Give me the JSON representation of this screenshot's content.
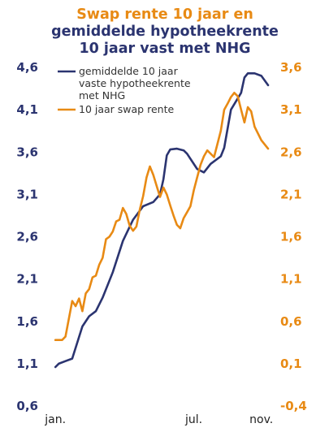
{
  "chart_data": {
    "type": "line",
    "title_lines": [
      {
        "text": "Swap rente 10 jaar en",
        "color": "#e88a14"
      },
      {
        "text": "gemiddelde hypotheekrente",
        "color": "#2b3470"
      },
      {
        "text": "10 jaar vast met NHG",
        "color": "#2b3470"
      }
    ],
    "x_ticks": [
      {
        "label": "jan.",
        "x": 1
      },
      {
        "label": "jul.",
        "x": 42
      },
      {
        "label": "nov.",
        "x": 62
      }
    ],
    "x_range": [
      0,
      64
    ],
    "y_left": {
      "ticks": [
        "4,6",
        "4,1",
        "3,6",
        "3,1",
        "2,6",
        "2,1",
        "1,6",
        "1,1",
        "0,6"
      ],
      "range": [
        0.6,
        4.6
      ],
      "color": "#2b3470"
    },
    "y_right": {
      "ticks": [
        "3,6",
        "3,1",
        "2,6",
        "2,1",
        "1,6",
        "1,1",
        "0,6",
        "0,1",
        "-0,4"
      ],
      "range": [
        -0.4,
        3.6
      ],
      "color": "#e88a14"
    },
    "series": [
      {
        "name": "gemiddelde 10 jaar vaste hypotheekrente met NHG",
        "legend_lines": [
          "gemiddelde 10 jaar",
          "vaste hypotheekrente",
          "met NHG"
        ],
        "axis": "left",
        "color": "#2b3470",
        "points": [
          [
            1,
            1.06
          ],
          [
            2,
            1.1
          ],
          [
            4,
            1.13
          ],
          [
            6,
            1.16
          ],
          [
            9,
            1.54
          ],
          [
            11,
            1.66
          ],
          [
            13,
            1.72
          ],
          [
            15,
            1.88
          ],
          [
            18,
            2.18
          ],
          [
            21,
            2.55
          ],
          [
            24,
            2.8
          ],
          [
            27,
            2.96
          ],
          [
            30,
            3.01
          ],
          [
            32,
            3.1
          ],
          [
            33,
            3.28
          ],
          [
            34,
            3.56
          ],
          [
            35,
            3.63
          ],
          [
            37,
            3.64
          ],
          [
            39,
            3.62
          ],
          [
            40,
            3.58
          ],
          [
            43,
            3.4
          ],
          [
            45,
            3.36
          ],
          [
            47,
            3.46
          ],
          [
            50,
            3.55
          ],
          [
            51,
            3.65
          ],
          [
            53,
            4.1
          ],
          [
            56,
            4.3
          ],
          [
            57,
            4.48
          ],
          [
            58,
            4.53
          ],
          [
            60,
            4.53
          ],
          [
            62,
            4.5
          ],
          [
            64,
            4.39
          ]
        ]
      },
      {
        "name": "10 jaar swap rente",
        "legend_lines": [
          "10 jaar swap rente"
        ],
        "axis": "right",
        "color": "#e88a14",
        "points": [
          [
            1,
            0.38
          ],
          [
            3,
            0.38
          ],
          [
            4,
            0.42
          ],
          [
            6,
            0.84
          ],
          [
            7,
            0.78
          ],
          [
            8,
            0.87
          ],
          [
            9,
            0.72
          ],
          [
            10,
            0.93
          ],
          [
            11,
            0.98
          ],
          [
            12,
            1.12
          ],
          [
            13,
            1.14
          ],
          [
            14,
            1.27
          ],
          [
            15,
            1.35
          ],
          [
            16,
            1.57
          ],
          [
            17,
            1.6
          ],
          [
            18,
            1.66
          ],
          [
            19,
            1.78
          ],
          [
            20,
            1.8
          ],
          [
            21,
            1.94
          ],
          [
            22,
            1.87
          ],
          [
            23,
            1.73
          ],
          [
            24,
            1.67
          ],
          [
            25,
            1.72
          ],
          [
            26,
            1.92
          ],
          [
            27,
            2.08
          ],
          [
            28,
            2.3
          ],
          [
            29,
            2.43
          ],
          [
            30,
            2.33
          ],
          [
            31,
            2.2
          ],
          [
            32,
            2.07
          ],
          [
            33,
            2.18
          ],
          [
            34,
            2.1
          ],
          [
            35,
            1.97
          ],
          [
            36,
            1.85
          ],
          [
            37,
            1.74
          ],
          [
            38,
            1.7
          ],
          [
            39,
            1.82
          ],
          [
            40,
            1.89
          ],
          [
            41,
            1.96
          ],
          [
            42,
            2.15
          ],
          [
            43,
            2.3
          ],
          [
            44,
            2.45
          ],
          [
            45,
            2.55
          ],
          [
            46,
            2.62
          ],
          [
            48,
            2.54
          ],
          [
            50,
            2.85
          ],
          [
            51,
            3.1
          ],
          [
            52,
            3.17
          ],
          [
            53,
            3.25
          ],
          [
            54,
            3.3
          ],
          [
            55,
            3.26
          ],
          [
            56,
            3.1
          ],
          [
            57,
            2.95
          ],
          [
            58,
            3.13
          ],
          [
            59,
            3.08
          ],
          [
            60,
            2.9
          ],
          [
            62,
            2.74
          ],
          [
            64,
            2.64
          ]
        ]
      }
    ],
    "legend_placement": "top-left",
    "grid": false
  }
}
